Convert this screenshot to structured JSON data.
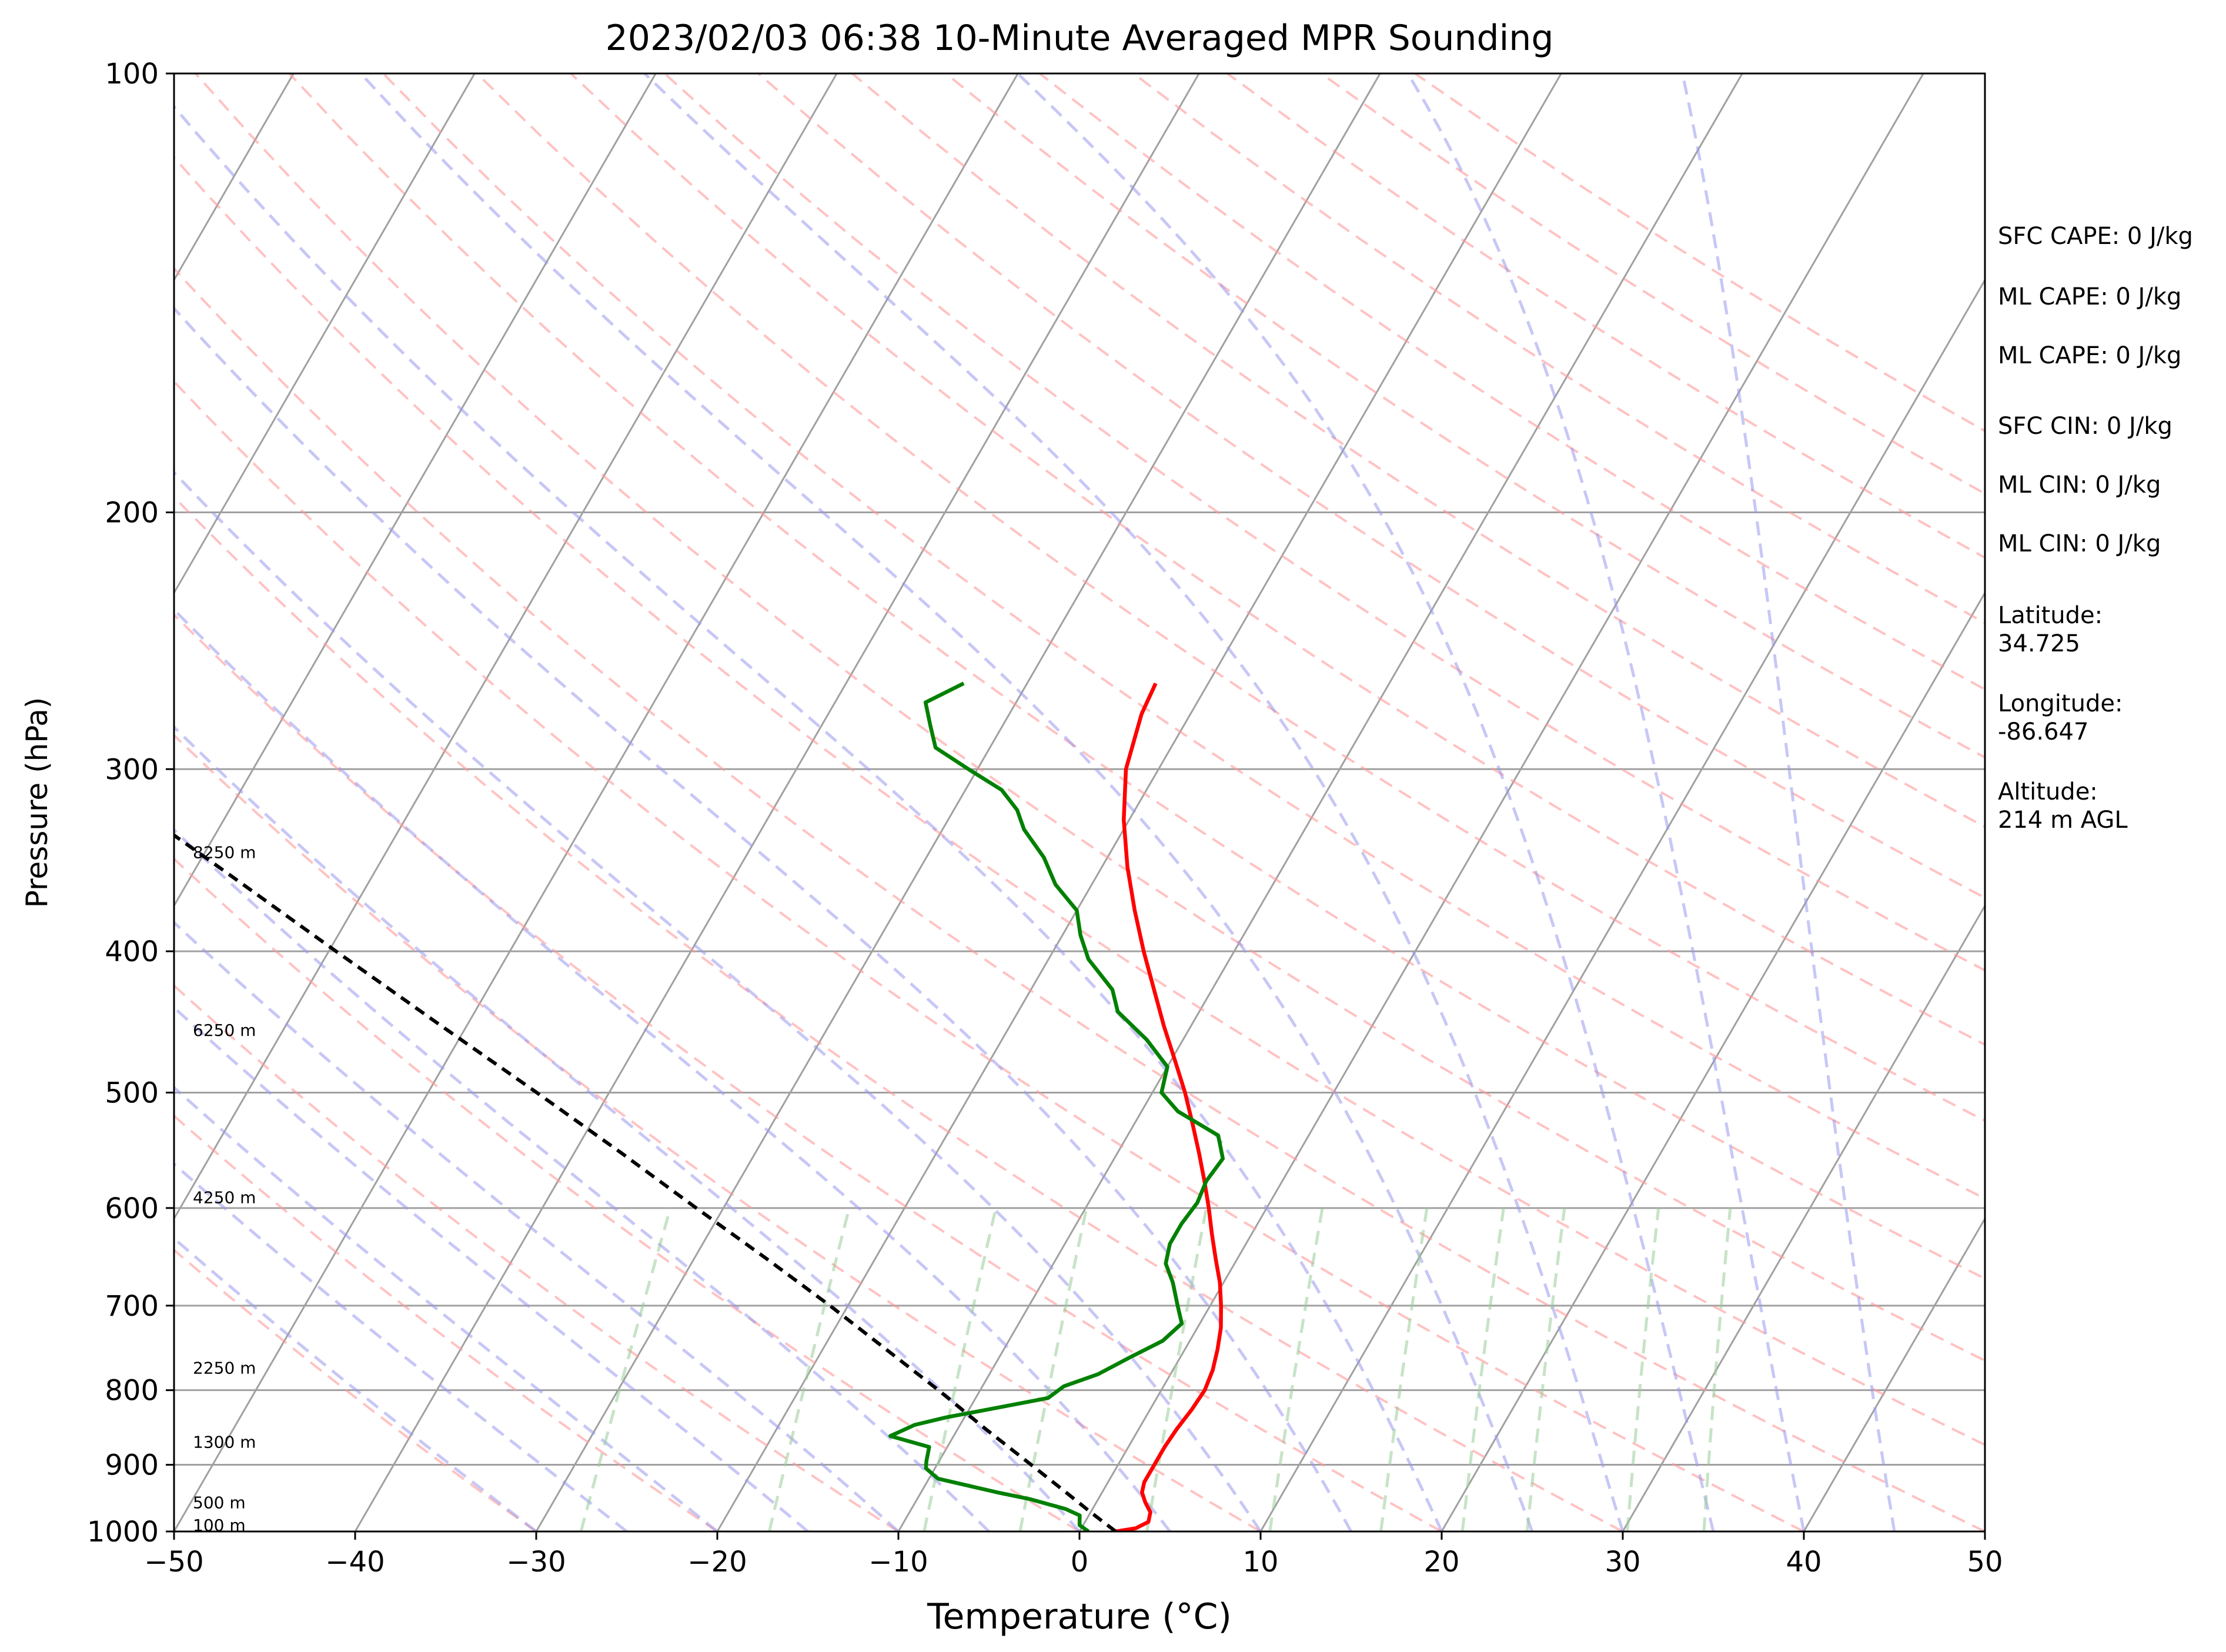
{
  "chart_data": {
    "type": "line",
    "title": "2023/02/03 06:38 10-Minute Averaged MPR Sounding",
    "xlabel": "Temperature (°C)",
    "ylabel": "Pressure (hPa)",
    "xlim": [
      -50,
      50
    ],
    "ylim": [
      1000,
      100
    ],
    "y_scale": "log",
    "x_ticks": [
      -50,
      -40,
      -30,
      -20,
      -10,
      0,
      10,
      20,
      30,
      40,
      50
    ],
    "x_tick_labels": [
      "−50",
      "−40",
      "−30",
      "−20",
      "−10",
      "0",
      "10",
      "20",
      "30",
      "40",
      "50"
    ],
    "y_ticks": [
      1000,
      900,
      800,
      700,
      600,
      500,
      400,
      300,
      200,
      100
    ],
    "y_tick_labels": [
      "1000",
      "900",
      "800",
      "700",
      "600",
      "500",
      "400",
      "300",
      "200",
      "100"
    ],
    "grid": true,
    "height_labels": [
      {
        "label": "100 m",
        "pressure": 990
      },
      {
        "label": "500 m",
        "pressure": 955
      },
      {
        "label": "1300 m",
        "pressure": 868
      },
      {
        "label": "2250 m",
        "pressure": 772
      },
      {
        "label": "4250 m",
        "pressure": 590
      },
      {
        "label": "6250 m",
        "pressure": 453
      },
      {
        "label": "8250 m",
        "pressure": 342
      }
    ],
    "series": [
      {
        "type": "temperature",
        "color": "#ff0000",
        "points": [
          [
            1000,
            2.0
          ],
          [
            995,
            3.0
          ],
          [
            985,
            3.5
          ],
          [
            970,
            3.3
          ],
          [
            955,
            2.7
          ],
          [
            940,
            2.2
          ],
          [
            925,
            2.0
          ],
          [
            900,
            2.0
          ],
          [
            875,
            2.0
          ],
          [
            850,
            2.1
          ],
          [
            825,
            2.3
          ],
          [
            800,
            2.4
          ],
          [
            775,
            2.2
          ],
          [
            750,
            1.8
          ],
          [
            725,
            1.3
          ],
          [
            700,
            0.6
          ],
          [
            675,
            -0.2
          ],
          [
            650,
            -1.2
          ],
          [
            625,
            -2.2
          ],
          [
            600,
            -3.2
          ],
          [
            575,
            -4.3
          ],
          [
            550,
            -5.5
          ],
          [
            525,
            -6.8
          ],
          [
            500,
            -8.2
          ],
          [
            475,
            -9.8
          ],
          [
            450,
            -11.5
          ],
          [
            425,
            -13.2
          ],
          [
            400,
            -15.0
          ],
          [
            375,
            -16.8
          ],
          [
            350,
            -18.6
          ],
          [
            325,
            -20.3
          ],
          [
            300,
            -21.8
          ],
          [
            275,
            -22.7
          ],
          [
            262,
            -22.9
          ]
        ]
      },
      {
        "type": "dewpoint",
        "color": "#008000",
        "points": [
          [
            1000,
            0.5
          ],
          [
            990,
            -0.2
          ],
          [
            975,
            -0.5
          ],
          [
            965,
            -1.5
          ],
          [
            950,
            -3.8
          ],
          [
            940,
            -5.8
          ],
          [
            920,
            -9.5
          ],
          [
            905,
            -10.5
          ],
          [
            895,
            -10.7
          ],
          [
            875,
            -11.0
          ],
          [
            860,
            -13.5
          ],
          [
            845,
            -12.5
          ],
          [
            835,
            -11.0
          ],
          [
            825,
            -9.0
          ],
          [
            810,
            -6.0
          ],
          [
            795,
            -5.5
          ],
          [
            780,
            -4.0
          ],
          [
            760,
            -2.8
          ],
          [
            740,
            -1.5
          ],
          [
            720,
            -1.0
          ],
          [
            700,
            -1.8
          ],
          [
            675,
            -2.8
          ],
          [
            655,
            -3.8
          ],
          [
            635,
            -4.2
          ],
          [
            615,
            -4.2
          ],
          [
            595,
            -4.0
          ],
          [
            575,
            -4.2
          ],
          [
            555,
            -4.0
          ],
          [
            535,
            -5.0
          ],
          [
            515,
            -8.0
          ],
          [
            500,
            -9.5
          ],
          [
            480,
            -10.0
          ],
          [
            460,
            -12.0
          ],
          [
            440,
            -14.5
          ],
          [
            425,
            -15.5
          ],
          [
            405,
            -17.8
          ],
          [
            390,
            -19.0
          ],
          [
            375,
            -20.0
          ],
          [
            360,
            -22.0
          ],
          [
            345,
            -23.5
          ],
          [
            330,
            -25.5
          ],
          [
            320,
            -26.5
          ],
          [
            310,
            -28.0
          ],
          [
            300,
            -30.5
          ],
          [
            290,
            -33.0
          ],
          [
            280,
            -34.0
          ],
          [
            270,
            -35.0
          ],
          [
            262,
            -33.5
          ]
        ]
      },
      {
        "type": "parcel",
        "color": "#000000",
        "points": [
          [
            1000,
            2.0
          ],
          [
            970,
            0.0
          ],
          [
            940,
            -2.0
          ],
          [
            900,
            -4.8
          ],
          [
            850,
            -8.5
          ],
          [
            800,
            -12.3
          ],
          [
            750,
            -16.5
          ],
          [
            700,
            -21.0
          ],
          [
            650,
            -26.0
          ],
          [
            600,
            -31.5
          ],
          [
            550,
            -37.4
          ],
          [
            500,
            -44.0
          ],
          [
            450,
            -51.4
          ],
          [
            400,
            -59.6
          ],
          [
            350,
            -68.8
          ],
          [
            300,
            -79.5
          ],
          [
            262,
            -88.9
          ]
        ]
      }
    ],
    "background_lines": {
      "isotherm_color": "#a0a0a0",
      "dry_adiabat_color": "#ff9999",
      "moist_adiabat_color": "#9999ee",
      "mixing_ratio_color": "#99cc99"
    }
  },
  "sidebar": {
    "sfc_cape": "SFC CAPE: 0 J/kg",
    "ml_cape_1": "ML CAPE: 0 J/kg",
    "ml_cape_2": "ML CAPE: 0 J/kg",
    "sfc_cin": "SFC CIN: 0 J/kg",
    "ml_cin_1": "ML CIN: 0 J/kg",
    "ml_cin_2": "ML CIN: 0 J/kg",
    "latitude_label": "Latitude:",
    "latitude_value": "34.725",
    "longitude_label": "Longitude:",
    "longitude_value": "-86.647",
    "altitude_label": "Altitude:",
    "altitude_value": "214 m AGL"
  }
}
